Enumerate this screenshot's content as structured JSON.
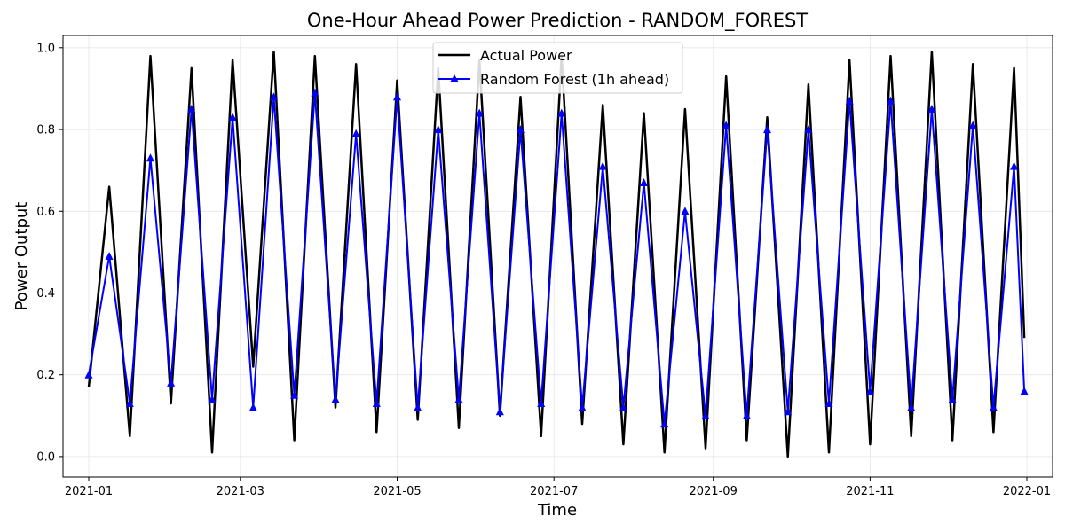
{
  "chart_data": {
    "type": "line",
    "title": "One-Hour Ahead Power Prediction - RANDOM_FOREST",
    "xlabel": "Time",
    "ylabel": "Power Output",
    "x_range": [
      "2020-12-22",
      "2022-01-11"
    ],
    "ylim": [
      -0.05,
      1.03
    ],
    "x_ticks": [
      "2021-01",
      "2021-03",
      "2021-05",
      "2021-07",
      "2021-09",
      "2021-11",
      "2022-01"
    ],
    "y_ticks": [
      "0.0",
      "0.2",
      "0.4",
      "0.6",
      "0.8",
      "1.0"
    ],
    "grid": true,
    "legend_position": "top-center",
    "series": [
      {
        "name": "Actual Power",
        "color": "#000000",
        "marker": "none",
        "x": [
          "2021-01-01",
          "2021-01-09",
          "2021-01-17",
          "2021-01-25",
          "2021-02-02",
          "2021-02-10",
          "2021-02-18",
          "2021-02-26",
          "2021-03-06",
          "2021-03-14",
          "2021-03-22",
          "2021-03-30",
          "2021-04-07",
          "2021-04-15",
          "2021-04-23",
          "2021-05-01",
          "2021-05-09",
          "2021-05-17",
          "2021-05-25",
          "2021-06-02",
          "2021-06-10",
          "2021-06-18",
          "2021-06-26",
          "2021-07-04",
          "2021-07-12",
          "2021-07-20",
          "2021-07-28",
          "2021-08-05",
          "2021-08-13",
          "2021-08-21",
          "2021-08-29",
          "2021-09-06",
          "2021-09-14",
          "2021-09-22",
          "2021-09-30",
          "2021-10-08",
          "2021-10-16",
          "2021-10-24",
          "2021-11-01",
          "2021-11-09",
          "2021-11-17",
          "2021-11-25",
          "2021-12-03",
          "2021-12-11",
          "2021-12-19",
          "2021-12-27",
          "2021-12-31"
        ],
        "values": [
          0.17,
          0.66,
          0.05,
          0.98,
          0.13,
          0.95,
          0.01,
          0.97,
          0.22,
          0.99,
          0.04,
          0.98,
          0.12,
          0.96,
          0.06,
          0.92,
          0.09,
          0.95,
          0.07,
          0.97,
          0.1,
          0.88,
          0.05,
          0.98,
          0.08,
          0.86,
          0.03,
          0.84,
          0.01,
          0.85,
          0.02,
          0.93,
          0.04,
          0.83,
          0.0,
          0.91,
          0.01,
          0.97,
          0.03,
          0.98,
          0.05,
          0.99,
          0.04,
          0.96,
          0.06,
          0.95,
          0.29
        ]
      },
      {
        "name": "Random Forest (1h ahead)",
        "color": "#0000ff",
        "marker": "^",
        "x": [
          "2021-01-01",
          "2021-01-09",
          "2021-01-17",
          "2021-01-25",
          "2021-02-02",
          "2021-02-10",
          "2021-02-18",
          "2021-02-26",
          "2021-03-06",
          "2021-03-14",
          "2021-03-22",
          "2021-03-30",
          "2021-04-07",
          "2021-04-15",
          "2021-04-23",
          "2021-05-01",
          "2021-05-09",
          "2021-05-17",
          "2021-05-25",
          "2021-06-02",
          "2021-06-10",
          "2021-06-18",
          "2021-06-26",
          "2021-07-04",
          "2021-07-12",
          "2021-07-20",
          "2021-07-28",
          "2021-08-05",
          "2021-08-13",
          "2021-08-21",
          "2021-08-29",
          "2021-09-06",
          "2021-09-14",
          "2021-09-22",
          "2021-09-30",
          "2021-10-08",
          "2021-10-16",
          "2021-10-24",
          "2021-11-01",
          "2021-11-09",
          "2021-11-17",
          "2021-11-25",
          "2021-12-03",
          "2021-12-11",
          "2021-12-19",
          "2021-12-27",
          "2021-12-31"
        ],
        "values": [
          0.2,
          0.49,
          0.13,
          0.73,
          0.18,
          0.85,
          0.14,
          0.83,
          0.12,
          0.88,
          0.15,
          0.89,
          0.14,
          0.79,
          0.13,
          0.88,
          0.12,
          0.8,
          0.14,
          0.84,
          0.11,
          0.8,
          0.13,
          0.84,
          0.12,
          0.71,
          0.12,
          0.67,
          0.08,
          0.6,
          0.1,
          0.81,
          0.1,
          0.8,
          0.11,
          0.8,
          0.13,
          0.87,
          0.16,
          0.87,
          0.12,
          0.85,
          0.14,
          0.81,
          0.12,
          0.71,
          0.16
        ]
      }
    ]
  }
}
